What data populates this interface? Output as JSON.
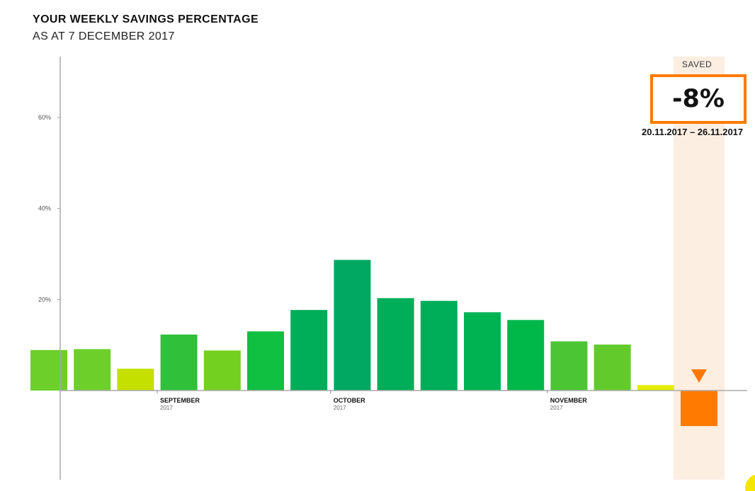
{
  "header": {
    "title": "YOUR WEEKLY SAVINGS PERCENTAGE",
    "subtitle": "AS AT 7 DECEMBER 2017"
  },
  "highlight": {
    "label": "SAVED",
    "value": "-8%",
    "range": "20.11.2017 – 26.11.2017",
    "band_color": "#fdeee2",
    "accent_color": "#ff7a00"
  },
  "chart_data": {
    "type": "bar",
    "title": "YOUR WEEKLY SAVINGS PERCENTAGE",
    "subtitle": "AS AT 7 DECEMBER 2017",
    "ylim": [
      -20,
      72
    ],
    "yticks": [
      {
        "value": 20,
        "label": "20%"
      },
      {
        "value": 40,
        "label": "40%"
      },
      {
        "value": 60,
        "label": "60%"
      }
    ],
    "month_labels": [
      {
        "month": "SEPTEMBER",
        "year": "2017",
        "after_bar": 2
      },
      {
        "month": "OCTOBER",
        "year": "2017",
        "after_bar": 6
      },
      {
        "month": "NOVEMBER",
        "year": "2017",
        "after_bar": 11
      }
    ],
    "values": [
      8.9,
      9.1,
      4.8,
      12.3,
      8.8,
      13.0,
      17.7,
      28.7,
      20.3,
      19.7,
      17.2,
      15.5,
      10.8,
      10.1,
      1.2,
      -7.8
    ],
    "colors": [
      "#6ccf2a",
      "#6ccf2a",
      "#c3e000",
      "#30c03a",
      "#74d020",
      "#10c040",
      "#00ad58",
      "#00a862",
      "#00ad58",
      "#00ad58",
      "#00b352",
      "#00b84a",
      "#4cc535",
      "#62cb2b",
      "#e5ec00",
      "#ff7a00"
    ],
    "highlight_index": 15
  }
}
